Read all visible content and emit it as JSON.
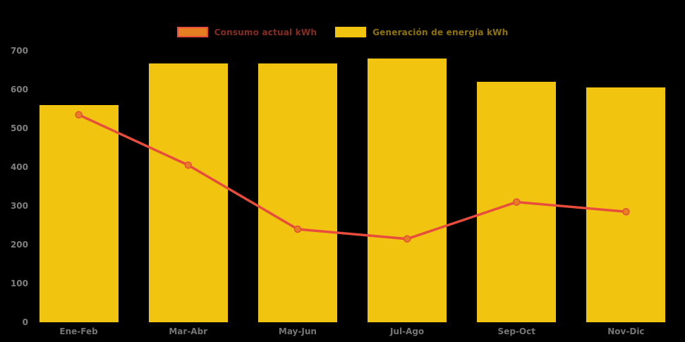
{
  "background_color": "#000000",
  "chart_data": {
    "type": "bar",
    "subtype": "column-with-line-overlay",
    "title": "",
    "xlabel": "",
    "ylabel": "",
    "categories": [
      "Ene-Feb",
      "Mar-Abr",
      "May-Jun",
      "Jul-Ago",
      "Sep-Oct",
      "Nov-Dic"
    ],
    "series": [
      {
        "name": "Consumo actual kWh",
        "type": "line",
        "color": "#e74c3c",
        "marker_color": "#e67e22",
        "swatch_fill": "#e67e22",
        "swatch_border": "#e74c3c",
        "values": [
          535,
          405,
          240,
          215,
          310,
          285
        ]
      },
      {
        "name": "Generación de energía kWh",
        "type": "bar",
        "color": "#f1c40f",
        "swatch_fill": "#f1c40f",
        "swatch_border": "",
        "values": [
          560,
          668,
          668,
          680,
          620,
          605
        ]
      }
    ],
    "ylim": [
      0,
      700
    ],
    "ytick_step": 100,
    "ytick_labels": [
      "0",
      "100",
      "200",
      "300",
      "400",
      "500",
      "600",
      "700"
    ],
    "grid": false,
    "legend_position": "top-center",
    "axis_tick_color": "#7e7e7e",
    "category_label_color": "#757575"
  }
}
